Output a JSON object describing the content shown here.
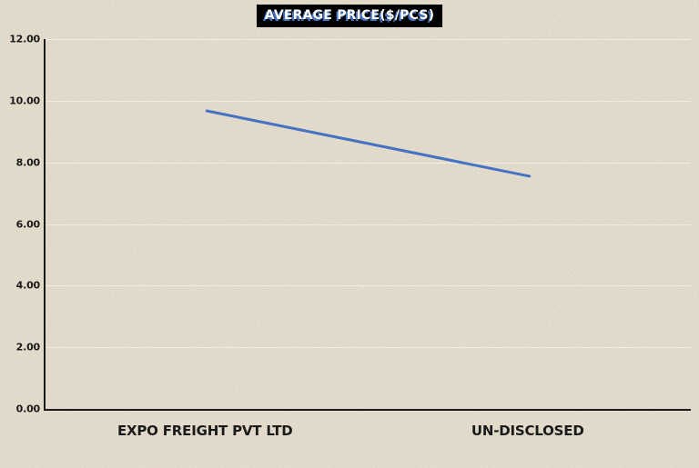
{
  "chart_data": {
    "type": "line",
    "title": "AVERAGE PRICE($/PCS)",
    "categories": [
      "EXPO FREIGHT PVT LTD",
      "UN-DISCLOSED"
    ],
    "series": [
      {
        "name": "AVERAGE PRICE($/PCS)",
        "values": [
          9.67,
          7.55
        ]
      }
    ],
    "xlabel": "",
    "ylabel": "",
    "ylim": [
      0,
      12
    ],
    "y_tick_interval": 2,
    "y_tick_labels": [
      "0.00",
      "2.00",
      "4.00",
      "6.00",
      "8.00",
      "10.00",
      "12.00"
    ],
    "grid": "faint-horizontal",
    "legend_position": "none",
    "colors": {
      "line": "#4472C4",
      "background": "#E5DDCD",
      "axis": "#1b1b1b",
      "gridline": "rgba(255,255,255,0.5)",
      "title_bg": "#000000",
      "title_text": "#FFFFFF",
      "title_shadow": "#4472C4",
      "label_text": "#1a1a1a"
    }
  }
}
